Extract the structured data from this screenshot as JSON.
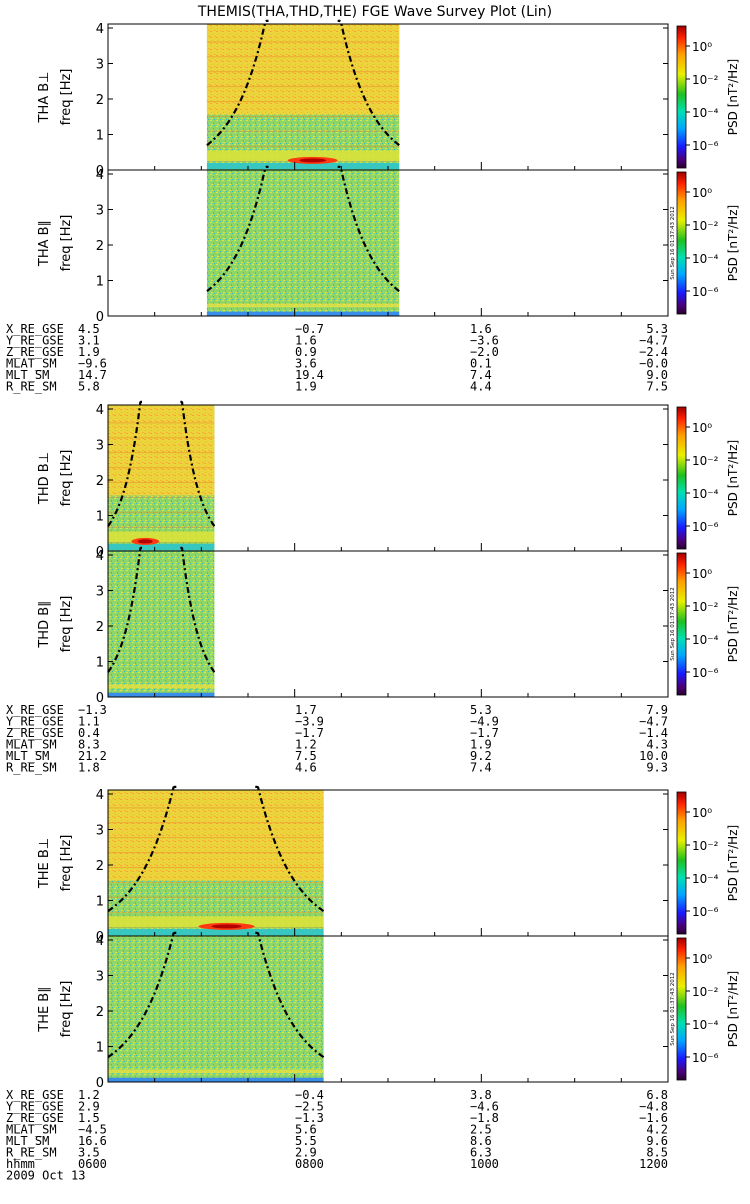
{
  "title": "THEMIS(THA,THD,THE) FGE Wave Survey Plot (Lin)",
  "colorbar": {
    "label": "PSD [nT²/Hz]",
    "ticks": [
      "10⁰",
      "10⁻²",
      "10⁻⁴",
      "10⁻⁶"
    ],
    "stamp": "Sun Sep 16 01:37:43 2012"
  },
  "footer": {
    "time_label": "hhmm",
    "date": "2009 Oct 13",
    "time_ticks": [
      "0600",
      "0800",
      "1000",
      "1200"
    ]
  },
  "chart_data": [
    {
      "type": "heatmap",
      "probe": "THA",
      "panels": [
        {
          "ylabel_top": "THA B⊥",
          "ylabel": "freq [Hz]"
        },
        {
          "ylabel_top": "THA B∥",
          "ylabel": "freq [Hz]"
        }
      ],
      "ylim": [
        0,
        4
      ],
      "yticks": [
        "0",
        "1",
        "2",
        "3",
        "4"
      ],
      "xlim_hours": [
        6,
        12
      ],
      "data_span_hours": [
        7.06,
        9.12
      ],
      "orbit": {
        "X_RE_GSE": [
          "4.5",
          "-0.7",
          "1.6",
          "5.3"
        ],
        "Y_RE_GSE": [
          "3.1",
          "1.6",
          "-3.6",
          "-4.7"
        ],
        "Z_RE_GSE": [
          "1.9",
          "0.9",
          "-2.0",
          "-2.4"
        ],
        "MLAT_SM": [
          "-9.6",
          "3.6",
          "0.1",
          "-0.0"
        ],
        "MLT_SM": [
          "14.7",
          "19.4",
          "7.4",
          "9.0"
        ],
        "R_RE_SM": [
          "5.8",
          "1.9",
          "4.4",
          "7.5"
        ]
      }
    },
    {
      "type": "heatmap",
      "probe": "THD",
      "panels": [
        {
          "ylabel_top": "THD B⊥",
          "ylabel": "freq [Hz]"
        },
        {
          "ylabel_top": "THD B∥",
          "ylabel": "freq [Hz]"
        }
      ],
      "ylim": [
        0,
        4
      ],
      "yticks": [
        "0",
        "1",
        "2",
        "3",
        "4"
      ],
      "xlim_hours": [
        6,
        12
      ],
      "data_span_hours": [
        6,
        7.14
      ],
      "orbit": {
        "X_RE_GSE": [
          "-1.3",
          "1.7",
          "5.3",
          "7.9"
        ],
        "Y_RE_GSE": [
          "1.1",
          "-3.9",
          "-4.9",
          "-4.7"
        ],
        "Z_RE_GSE": [
          "0.4",
          "-1.7",
          "-1.7",
          "-1.4"
        ],
        "MLAT_SM": [
          "8.3",
          "1.2",
          "1.9",
          "4.3"
        ],
        "MLT_SM": [
          "21.2",
          "7.5",
          "9.2",
          "10.0"
        ],
        "R_RE_SM": [
          "1.8",
          "4.6",
          "7.4",
          "9.3"
        ]
      }
    },
    {
      "type": "heatmap",
      "probe": "THE",
      "panels": [
        {
          "ylabel_top": "THE B⊥",
          "ylabel": "freq [Hz]"
        },
        {
          "ylabel_top": "THE B∥",
          "ylabel": "freq [Hz]"
        }
      ],
      "ylim": [
        0,
        4
      ],
      "yticks": [
        "0",
        "1",
        "2",
        "3",
        "4"
      ],
      "xlim_hours": [
        6,
        12
      ],
      "data_span_hours": [
        6,
        8.31
      ],
      "orbit": {
        "X_RE_GSE": [
          "1.2",
          "-0.4",
          "3.8",
          "6.8"
        ],
        "Y_RE_GSE": [
          "2.9",
          "-2.5",
          "-4.6",
          "-4.8"
        ],
        "Z_RE_GSE": [
          "1.5",
          "-1.3",
          "-1.8",
          "-1.6"
        ],
        "MLAT_SM": [
          "-4.5",
          "5.6",
          "2.5",
          "4.2"
        ],
        "MLT_SM": [
          "16.6",
          "5.5",
          "8.6",
          "9.6"
        ],
        "R_RE_SM": [
          "3.5",
          "2.9",
          "6.3",
          "8.5"
        ]
      }
    }
  ]
}
